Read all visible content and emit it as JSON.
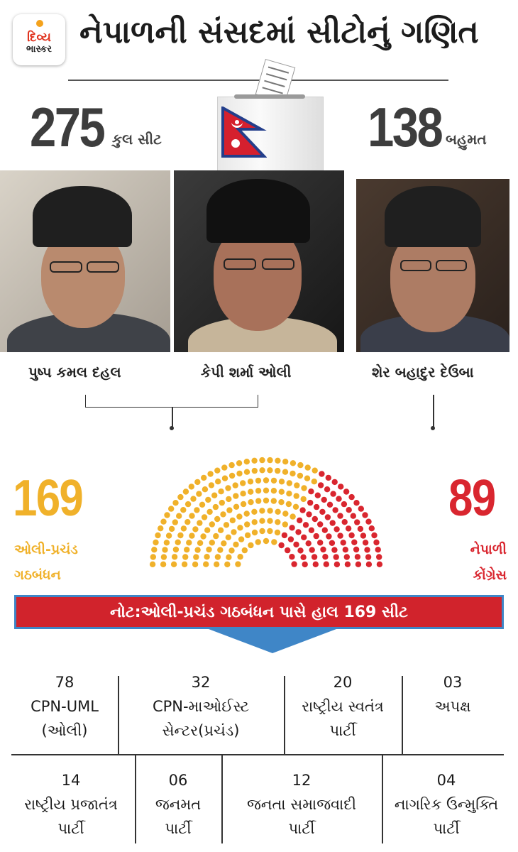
{
  "header": {
    "logo_line1": "દિવ્ય",
    "logo_line2": "ભાસ્કર",
    "title": "નેપાળની સંસદમાં સીટોનું ગણિત"
  },
  "stats": {
    "total_seats": "275",
    "total_label": "કુલ સીટ",
    "majority": "138",
    "majority_label": "બહુમત"
  },
  "leaders": [
    {
      "name": "પુષ્પ કમલ દહલ"
    },
    {
      "name": "કેપી શર્મા ઓલી"
    },
    {
      "name": "શેર બહાદુર દેઉબા"
    }
  ],
  "seat_chart": {
    "coalition_seats": "169",
    "coalition_label_1": "ઓલી-પ્રચંડ",
    "coalition_label_2": "ગઠબંધન",
    "congress_seats": "89",
    "congress_label_1": "નેપાળી",
    "congress_label_2": "કોંગ્રેસ",
    "colors": {
      "coalition": "#f0b12a",
      "congress": "#d9262f"
    }
  },
  "note": "નોટ:ઓલી-પ્રચંડ ગઠબંધન પાસે હાલ 169 સીટ",
  "parties_row1": [
    {
      "seats": "78",
      "name_1": "CPN-UML",
      "name_2": "(ઓલી)"
    },
    {
      "seats": "32",
      "name_1": "CPN-માઓઈસ્ટ",
      "name_2": "સેન્ટર(પ્રચંડ)"
    },
    {
      "seats": "20",
      "name_1": "રાષ્ટ્રીય સ્વતંત્ર",
      "name_2": "પાર્ટી"
    },
    {
      "seats": "03",
      "name_1": "અપક્ષ",
      "name_2": ""
    }
  ],
  "parties_row2": [
    {
      "seats": "14",
      "name_1": "રાષ્ટ્રીય પ્રજાતંત્ર",
      "name_2": "પાર્ટી"
    },
    {
      "seats": "06",
      "name_1": "જનમત",
      "name_2": "પાર્ટી"
    },
    {
      "seats": "12",
      "name_1": "જનતા સમાજવાદી",
      "name_2": "પાર્ટી"
    },
    {
      "seats": "04",
      "name_1": "નાગરિક ઉન્મુક્તિ",
      "name_2": "પાર્ટી"
    }
  ]
}
